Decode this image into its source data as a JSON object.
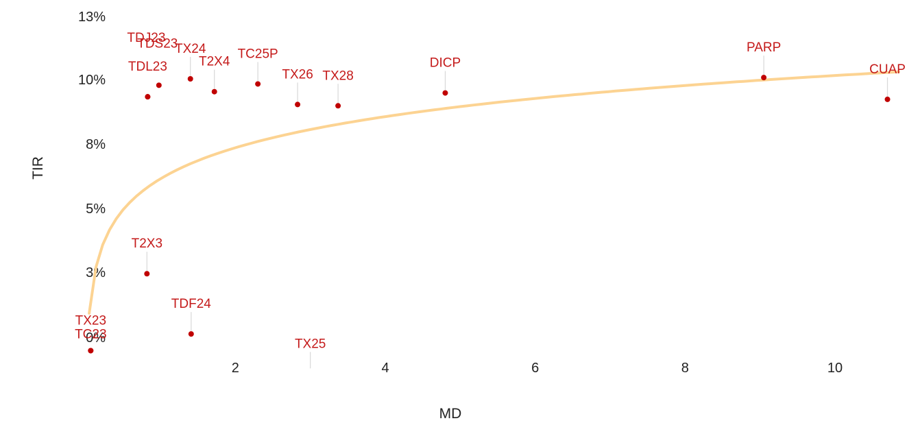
{
  "chart_data": {
    "type": "scatter",
    "title": "",
    "xlabel": "MD",
    "ylabel": "TIR",
    "xlim": [
      0,
      10.9
    ],
    "ylim": [
      -0.5,
      13.4
    ],
    "x_ticks": [
      2,
      4,
      6,
      8,
      10
    ],
    "y_ticks": [
      0,
      3,
      5,
      8,
      10,
      13
    ],
    "y_tick_labels": [
      "0%",
      "3%",
      "5%",
      "8%",
      "10%",
      "13%"
    ],
    "grid": false,
    "legend": "none",
    "colors": {
      "points": "#c00000",
      "labels": "#c41a1a",
      "trendline": "#fcd392",
      "leader": "#d8d8d8"
    },
    "trendline": {
      "type": "logarithmic",
      "a": 6.1,
      "b": 1.75,
      "x_range": [
        0.05,
        10.85
      ]
    },
    "points": [
      {
        "label": "TDJ23",
        "x": 0.83,
        "y": 9.3
      },
      {
        "label": "TDS23",
        "x": 0.98,
        "y": 9.75
      },
      {
        "label": "TX24",
        "x": 1.4,
        "y": 10.0
      },
      {
        "label": "TDL23",
        "x": 0.83,
        "y": 9.3
      },
      {
        "label": "T2X4",
        "x": 1.72,
        "y": 9.5
      },
      {
        "label": "TC25P",
        "x": 2.3,
        "y": 9.8
      },
      {
        "label": "TX26",
        "x": 2.83,
        "y": 9.0
      },
      {
        "label": "TX28",
        "x": 3.37,
        "y": 8.95
      },
      {
        "label": "DICP",
        "x": 4.8,
        "y": 9.45
      },
      {
        "label": "PARP",
        "x": 9.05,
        "y": 10.05
      },
      {
        "label": "CUAP",
        "x": 10.7,
        "y": 9.2
      },
      {
        "label": "T2X3",
        "x": 0.82,
        "y": 2.4
      },
      {
        "label": "TDF24",
        "x": 1.41,
        "y": 0.05
      },
      {
        "label": "TX23",
        "x": 0.07,
        "y": -0.6
      },
      {
        "label": "TC23",
        "x": 0.07,
        "y": -0.6
      },
      {
        "label": "TX25",
        "x": 3.0,
        "y": -1.4
      }
    ]
  }
}
